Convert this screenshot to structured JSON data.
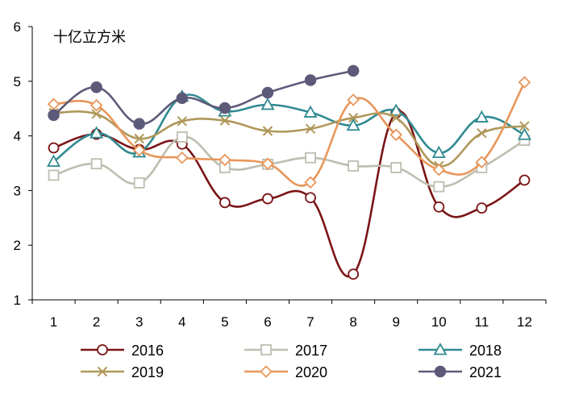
{
  "chart_data": {
    "type": "line",
    "unit_label": "十亿立方米",
    "categories": [
      "1",
      "2",
      "3",
      "4",
      "5",
      "6",
      "7",
      "8",
      "9",
      "10",
      "11",
      "12"
    ],
    "ylim": [
      1,
      6
    ],
    "y_ticks": [
      "1",
      "2",
      "3",
      "4",
      "5",
      "6"
    ],
    "legend_position": "bottom",
    "series": [
      {
        "name": "2016",
        "color": "#7b1416",
        "marker": "circle-open",
        "values": [
          3.78,
          4.03,
          3.75,
          3.85,
          2.78,
          2.85,
          2.87,
          1.47,
          4.42,
          2.7,
          2.68,
          3.19
        ]
      },
      {
        "name": "2017",
        "color": "#bebdb0",
        "marker": "square-open",
        "values": [
          3.28,
          3.49,
          3.14,
          3.98,
          3.42,
          3.48,
          3.6,
          3.45,
          3.42,
          3.07,
          3.42,
          3.92
        ]
      },
      {
        "name": "2018",
        "color": "#2f8a91",
        "marker": "triangle-open",
        "values": [
          3.53,
          4.05,
          3.7,
          4.72,
          4.45,
          4.57,
          4.43,
          4.19,
          4.46,
          3.69,
          4.34,
          4.02
        ]
      },
      {
        "name": "2019",
        "color": "#b0975a",
        "marker": "x",
        "values": [
          4.42,
          4.4,
          3.95,
          4.27,
          4.28,
          4.09,
          4.13,
          4.33,
          4.33,
          3.45,
          4.05,
          4.18
        ]
      },
      {
        "name": "2020",
        "color": "#e8965a",
        "marker": "diamond-open",
        "values": [
          4.58,
          4.56,
          3.74,
          3.6,
          3.56,
          3.49,
          3.15,
          4.66,
          4.02,
          3.38,
          3.52,
          4.98
        ]
      },
      {
        "name": "2021",
        "color": "#5c5a78",
        "marker": "circle-filled",
        "values": [
          4.38,
          4.89,
          4.22,
          4.69,
          4.51,
          4.79,
          5.02,
          5.19,
          null,
          null,
          null,
          null
        ]
      }
    ]
  }
}
